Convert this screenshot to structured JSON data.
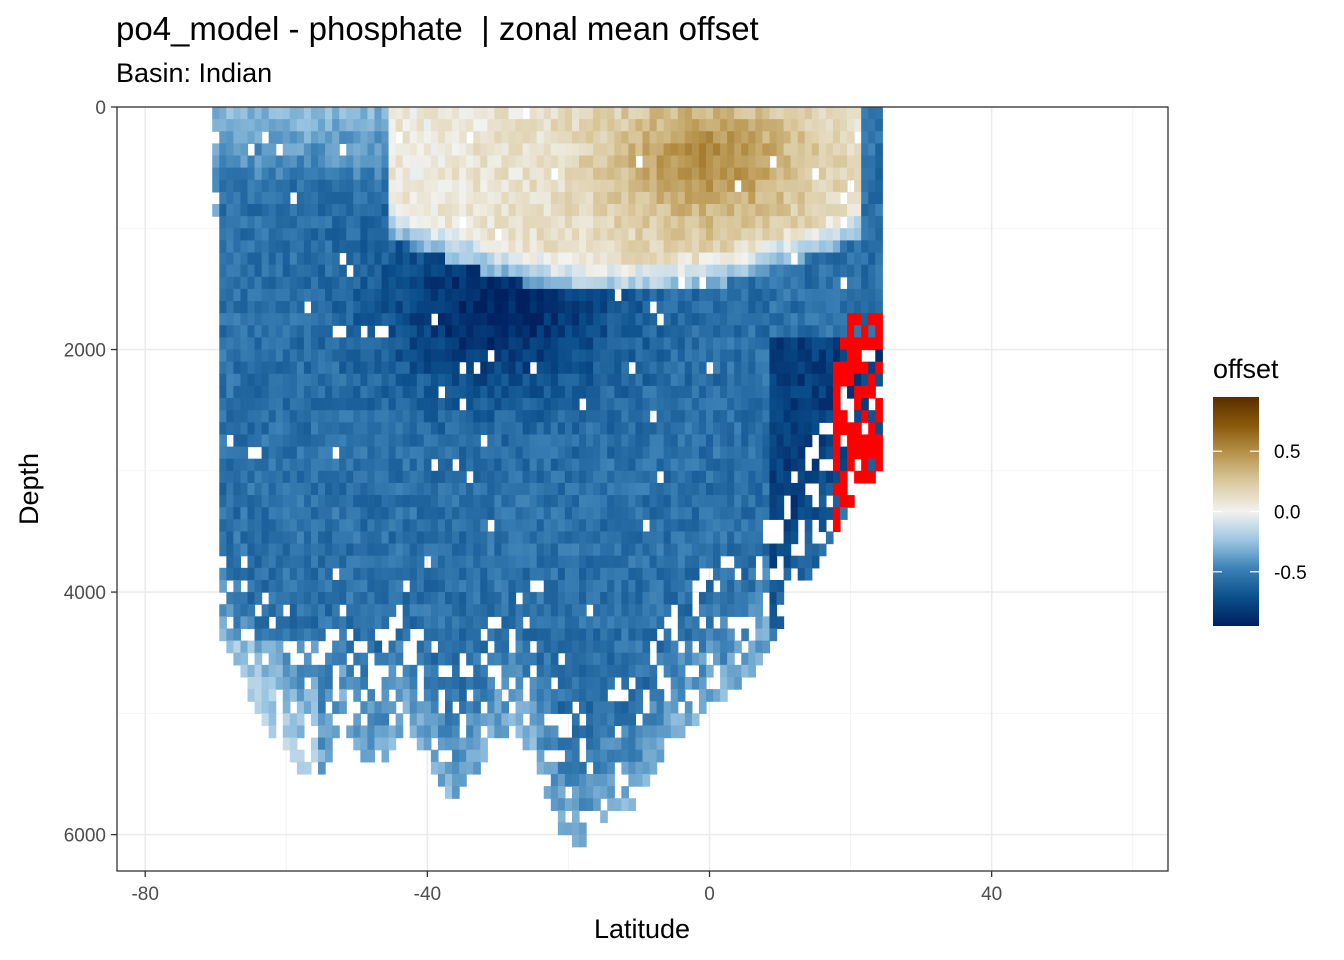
{
  "chart_data": {
    "type": "heatmap",
    "title": "po4_model - phosphate  | zonal mean offset",
    "subtitle": "Basin: Indian",
    "xlabel": "Latitude",
    "ylabel": "Depth",
    "xlim": [
      -84,
      65
    ],
    "ylim": [
      0,
      6300
    ],
    "y_reversed": true,
    "x_ticks": [
      -80,
      -40,
      0,
      40
    ],
    "x_tick_labels": [
      "-80",
      "-40",
      "0",
      "40"
    ],
    "y_ticks": [
      0,
      2000,
      4000,
      6000
    ],
    "y_tick_labels": [
      "0",
      "2000",
      "4000",
      "6000"
    ],
    "grid": true,
    "legend": {
      "title": "offset",
      "position": "right",
      "range": [
        -0.95,
        0.95
      ],
      "ticks": [
        0.5,
        0.0,
        -0.5
      ],
      "tick_labels": [
        "0.5",
        "0.0",
        "-0.5"
      ],
      "colors": [
        "#002060",
        "#0b4f8c",
        "#3b81b6",
        "#9cc6e2",
        "#f2f2ef",
        "#dccba2",
        "#b9964f",
        "#8a5a0b",
        "#5a2d00"
      ],
      "out_of_range_color": "#ff0000"
    },
    "grid_resolution": {
      "lat_step": 1,
      "depth_step": 100
    },
    "lat_extent": [
      -70,
      24
    ],
    "bottom_depth_profile": [
      [
        -70,
        1000
      ],
      [
        -69,
        4400
      ],
      [
        -67,
        4700
      ],
      [
        -64,
        5000
      ],
      [
        -61,
        5200
      ],
      [
        -58,
        5500
      ],
      [
        -55,
        5500
      ],
      [
        -52,
        5000
      ],
      [
        -49,
        5400
      ],
      [
        -46,
        5400
      ],
      [
        -43,
        5000
      ],
      [
        -40,
        5400
      ],
      [
        -37,
        5700
      ],
      [
        -34,
        5600
      ],
      [
        -31,
        5300
      ],
      [
        -28,
        5100
      ],
      [
        -25,
        5300
      ],
      [
        -22,
        5800
      ],
      [
        -20,
        6100
      ],
      [
        -17,
        6000
      ],
      [
        -14,
        5800
      ],
      [
        -11,
        5800
      ],
      [
        -9,
        5600
      ],
      [
        -6,
        5200
      ],
      [
        -3,
        5100
      ],
      [
        0,
        4900
      ],
      [
        2,
        4900
      ],
      [
        4,
        4800
      ],
      [
        6,
        4700
      ],
      [
        8,
        4500
      ],
      [
        10,
        4300
      ],
      [
        12,
        4100
      ],
      [
        14,
        3900
      ],
      [
        16,
        3700
      ],
      [
        18,
        3500
      ],
      [
        20,
        3300
      ],
      [
        22,
        3100
      ],
      [
        24,
        3000
      ]
    ],
    "positive_region": {
      "description_values": "positive offsets from surface to about 1200-1600 m between latitudes -45 and 21, peak about 0.35 near latitude 0 at 200-500 m",
      "lat_range": [
        -45,
        21
      ],
      "depth_range": [
        0,
        1600
      ],
      "peak_value": 0.35
    },
    "negative_core": {
      "lat": -30,
      "depth": 1600,
      "value": -0.95
    },
    "out_of_range_patch": {
      "lat_range": [
        18,
        24
      ],
      "depth_range": [
        1700,
        3400
      ]
    }
  }
}
